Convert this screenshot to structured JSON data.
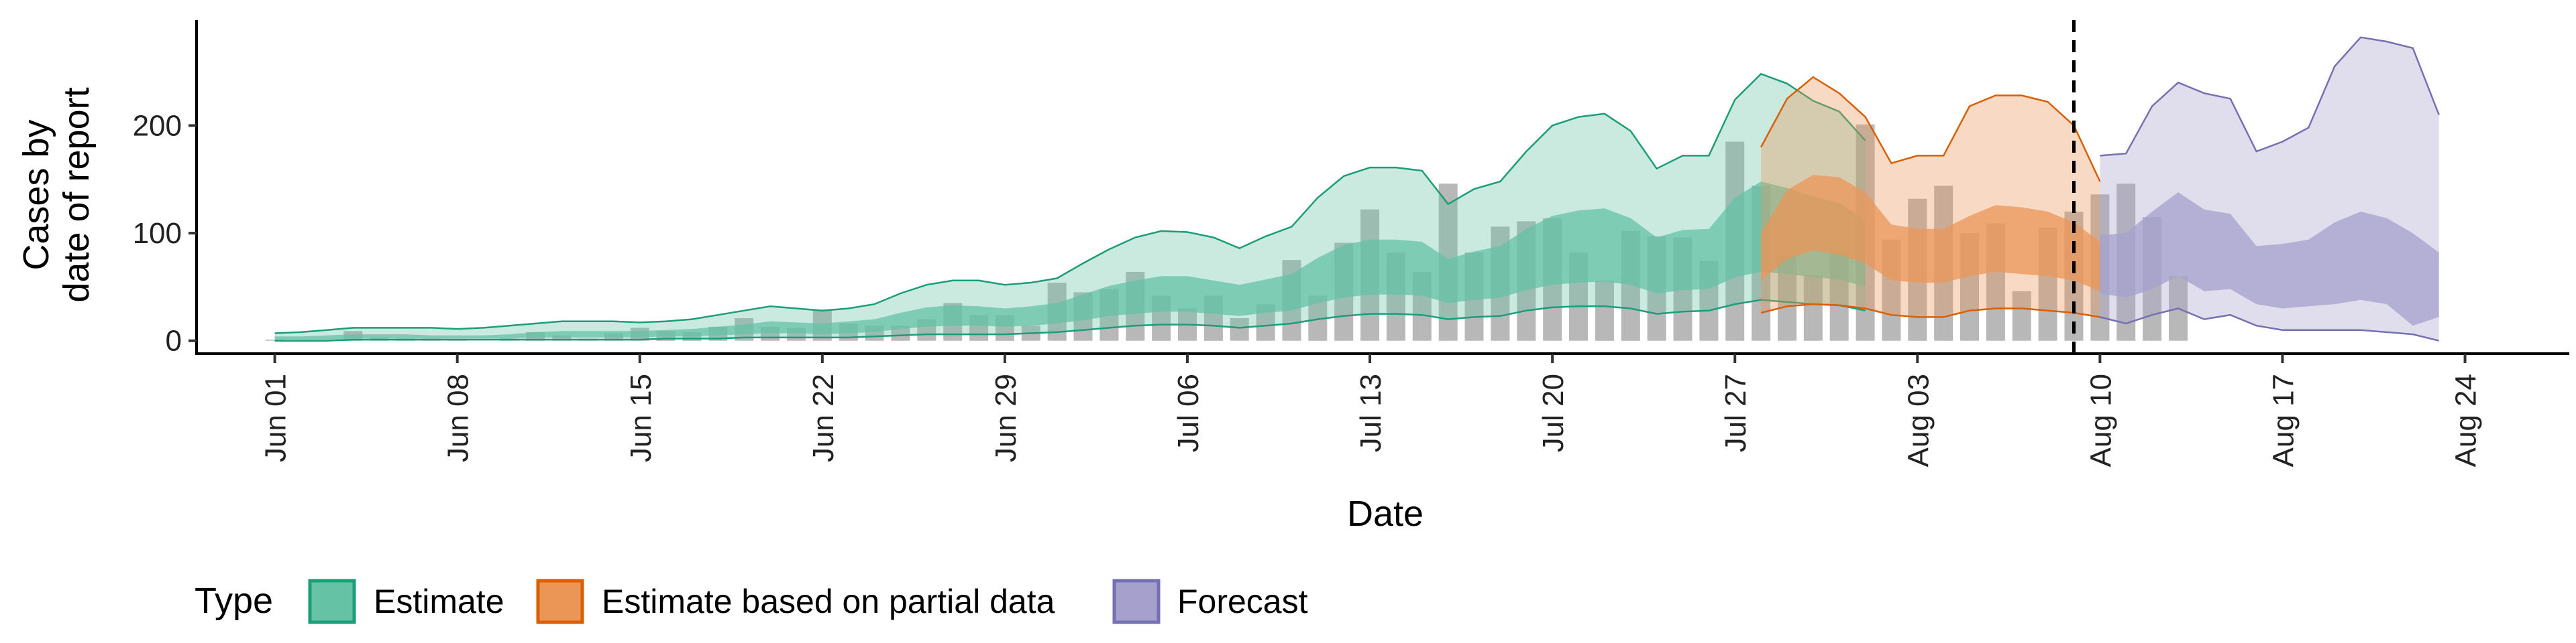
{
  "chart_data": {
    "type": "area",
    "xlabel": "Date",
    "ylabel": "Cases by date of report",
    "ylabel_lines": [
      "Cases by",
      "date of report"
    ],
    "x_range": [
      "2020-05-29",
      "2020-08-28"
    ],
    "ylim": [
      -12,
      298
    ],
    "y_ticks": [
      0,
      100,
      200
    ],
    "y_tick_labels": [
      "0",
      "100",
      "200"
    ],
    "x_ticks": [
      "2020-06-01",
      "2020-06-08",
      "2020-06-15",
      "2020-06-22",
      "2020-06-29",
      "2020-07-06",
      "2020-07-13",
      "2020-07-20",
      "2020-07-27",
      "2020-08-03",
      "2020-08-10",
      "2020-08-17",
      "2020-08-24"
    ],
    "x_tick_labels": [
      "Jun 01",
      "Jun 08",
      "Jun 15",
      "Jun 22",
      "Jun 29",
      "Jul 06",
      "Jul 13",
      "Jul 20",
      "Jul 27",
      "Aug 03",
      "Aug 10",
      "Aug 17",
      "Aug 24"
    ],
    "vline_date": "2020-08-09",
    "grid": false,
    "legend": {
      "title": "Type",
      "position": "bottom-left",
      "entries": [
        {
          "label": "Estimate",
          "fill": "#66c2a5",
          "stroke": "#1b9e77"
        },
        {
          "label": "Estimate based on partial data",
          "fill": "#eb9557",
          "stroke": "#d95f02"
        },
        {
          "label": "Forecast",
          "fill": "#a6a0cc",
          "stroke": "#7570b3"
        }
      ]
    },
    "bars": {
      "color": "#b8b8b8",
      "start_date": "2020-06-01",
      "values": [
        1,
        0,
        0,
        9,
        3,
        2,
        2,
        1,
        0,
        2,
        8,
        5,
        2,
        7,
        12,
        9,
        8,
        13,
        21,
        13,
        12,
        29,
        16,
        14,
        14,
        20,
        35,
        24,
        24,
        14,
        54,
        45,
        48,
        64,
        42,
        30,
        42,
        21,
        34,
        75,
        42,
        91,
        122,
        82,
        64,
        146,
        82,
        106,
        111,
        114,
        82,
        56,
        102,
        97,
        96,
        74,
        185,
        144,
        79,
        61,
        81,
        201,
        94,
        132,
        144,
        100,
        109,
        46,
        105,
        120,
        136,
        146,
        115,
        60
      ]
    },
    "series": [
      {
        "name": "Estimate",
        "start_date": "2020-06-01",
        "upper90": [
          7,
          8,
          10,
          12,
          12,
          12,
          12,
          11,
          12,
          14,
          16,
          18,
          18,
          18,
          17,
          18,
          20,
          24,
          28,
          32,
          30,
          28,
          30,
          34,
          44,
          52,
          56,
          56,
          52,
          54,
          58,
          72,
          85,
          96,
          102,
          101,
          96,
          86,
          97,
          106,
          133,
          153,
          161,
          161,
          158,
          127,
          141,
          148,
          176,
          200,
          208,
          211,
          195,
          160,
          172,
          172,
          224,
          248,
          239,
          223,
          213,
          186
        ],
        "upper50": [
          4,
          4,
          5,
          6,
          6,
          6,
          5,
          5,
          5,
          6,
          8,
          9,
          9,
          9,
          9,
          10,
          11,
          13,
          15,
          18,
          17,
          16,
          18,
          20,
          26,
          31,
          33,
          32,
          30,
          32,
          35,
          43,
          51,
          56,
          60,
          60,
          56,
          52,
          57,
          62,
          77,
          89,
          94,
          94,
          92,
          76,
          83,
          88,
          104,
          116,
          121,
          123,
          114,
          96,
          103,
          104,
          133,
          148,
          142,
          134,
          128,
          112
        ],
        "lower50": [
          1,
          1,
          1,
          2,
          2,
          2,
          2,
          2,
          2,
          2,
          3,
          3,
          3,
          3,
          3,
          4,
          4,
          5,
          6,
          7,
          7,
          6,
          7,
          8,
          11,
          13,
          14,
          14,
          13,
          14,
          16,
          19,
          23,
          25,
          27,
          27,
          25,
          23,
          26,
          28,
          35,
          40,
          43,
          43,
          42,
          35,
          38,
          40,
          47,
          52,
          54,
          55,
          52,
          44,
          47,
          48,
          59,
          64,
          62,
          59,
          57,
          50
        ],
        "lower90": [
          0,
          0,
          0,
          1,
          1,
          1,
          1,
          1,
          1,
          1,
          1,
          1,
          1,
          1,
          1,
          2,
          2,
          2,
          3,
          3,
          3,
          3,
          3,
          4,
          5,
          6,
          6,
          6,
          6,
          7,
          8,
          10,
          12,
          14,
          15,
          15,
          14,
          12,
          14,
          16,
          20,
          23,
          25,
          25,
          24,
          20,
          22,
          23,
          28,
          31,
          32,
          32,
          30,
          25,
          27,
          28,
          34,
          38,
          36,
          34,
          33,
          28
        ]
      },
      {
        "name": "Estimate based on partial data",
        "start_date": "2020-07-28",
        "upper90": [
          180,
          225,
          245,
          230,
          208,
          165,
          172,
          172,
          218,
          228,
          228,
          222,
          200,
          148
        ],
        "upper50": [
          100,
          140,
          154,
          152,
          138,
          108,
          104,
          104,
          116,
          126,
          124,
          120,
          110,
          92
        ],
        "lower50": [
          56,
          76,
          84,
          80,
          72,
          56,
          54,
          54,
          60,
          64,
          62,
          60,
          56,
          46
        ],
        "lower90": [
          26,
          32,
          34,
          33,
          30,
          24,
          22,
          22,
          28,
          30,
          30,
          28,
          26,
          22
        ]
      },
      {
        "name": "Forecast",
        "start_date": "2020-08-10",
        "upper90": [
          172,
          174,
          218,
          240,
          230,
          225,
          176,
          185,
          198,
          255,
          282,
          278,
          272,
          210
        ],
        "upper50": [
          98,
          100,
          120,
          138,
          122,
          118,
          88,
          90,
          94,
          110,
          120,
          114,
          100,
          82
        ],
        "lower50": [
          44,
          40,
          48,
          60,
          46,
          48,
          34,
          30,
          32,
          34,
          38,
          34,
          14,
          22
        ],
        "lower90": [
          22,
          16,
          24,
          30,
          20,
          24,
          14,
          10,
          10,
          10,
          10,
          8,
          6,
          0
        ]
      }
    ]
  }
}
